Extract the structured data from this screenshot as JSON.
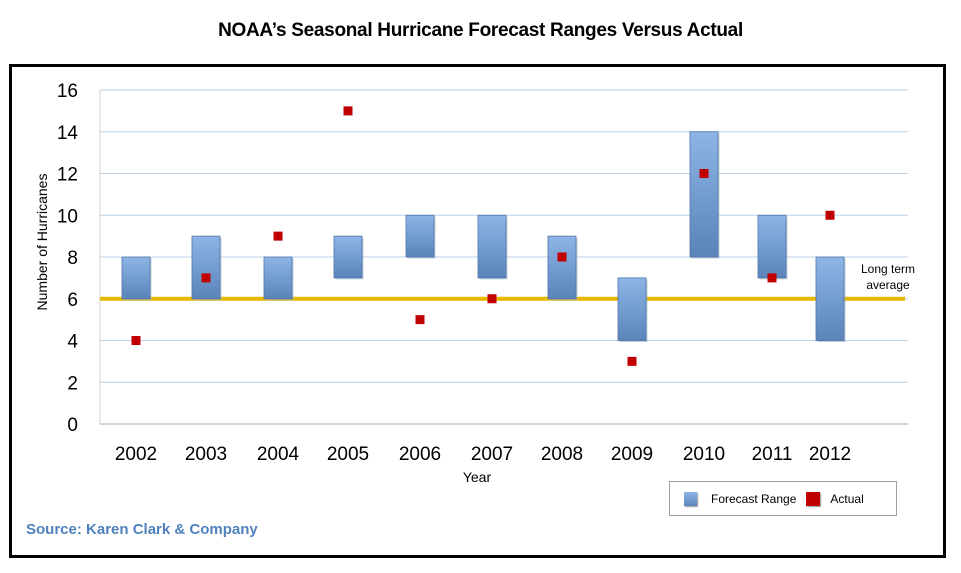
{
  "chart_data": {
    "type": "range-bar-scatter",
    "title": "NOAA’s Seasonal Hurricane Forecast Ranges Versus Actual",
    "xlabel": "Year",
    "ylabel": "Number of Hurricanes",
    "ylim": [
      0,
      16
    ],
    "yticks": [
      "0",
      "2",
      "4",
      "6",
      "8",
      "10",
      "12",
      "14",
      "16"
    ],
    "grid": true,
    "categories": [
      "2002",
      "2003",
      "2004",
      "2005",
      "2006",
      "2007",
      "2008",
      "2009",
      "2010",
      "2011",
      "2012"
    ],
    "series": [
      {
        "name": "Forecast Range",
        "type": "range",
        "color": "#6f9bd1",
        "low": [
          6,
          6,
          6,
          7,
          8,
          7,
          6,
          4,
          8,
          7,
          4
        ],
        "high": [
          8,
          9,
          8,
          9,
          10,
          10,
          9,
          7,
          14,
          10,
          8
        ]
      },
      {
        "name": "Actual",
        "type": "scatter",
        "color": "#c00000",
        "values": [
          4,
          7,
          9,
          15,
          5,
          6,
          8,
          3,
          12,
          7,
          10
        ]
      }
    ],
    "reference_line": {
      "label": "Long term average",
      "label_lines": [
        "Long term",
        "average"
      ],
      "value": 6,
      "color": "#e6b800"
    },
    "legend": {
      "position": "bottom-right",
      "entries": [
        "Forecast Range",
        "Actual"
      ]
    }
  },
  "source": "Source: Karen Clark & Company"
}
